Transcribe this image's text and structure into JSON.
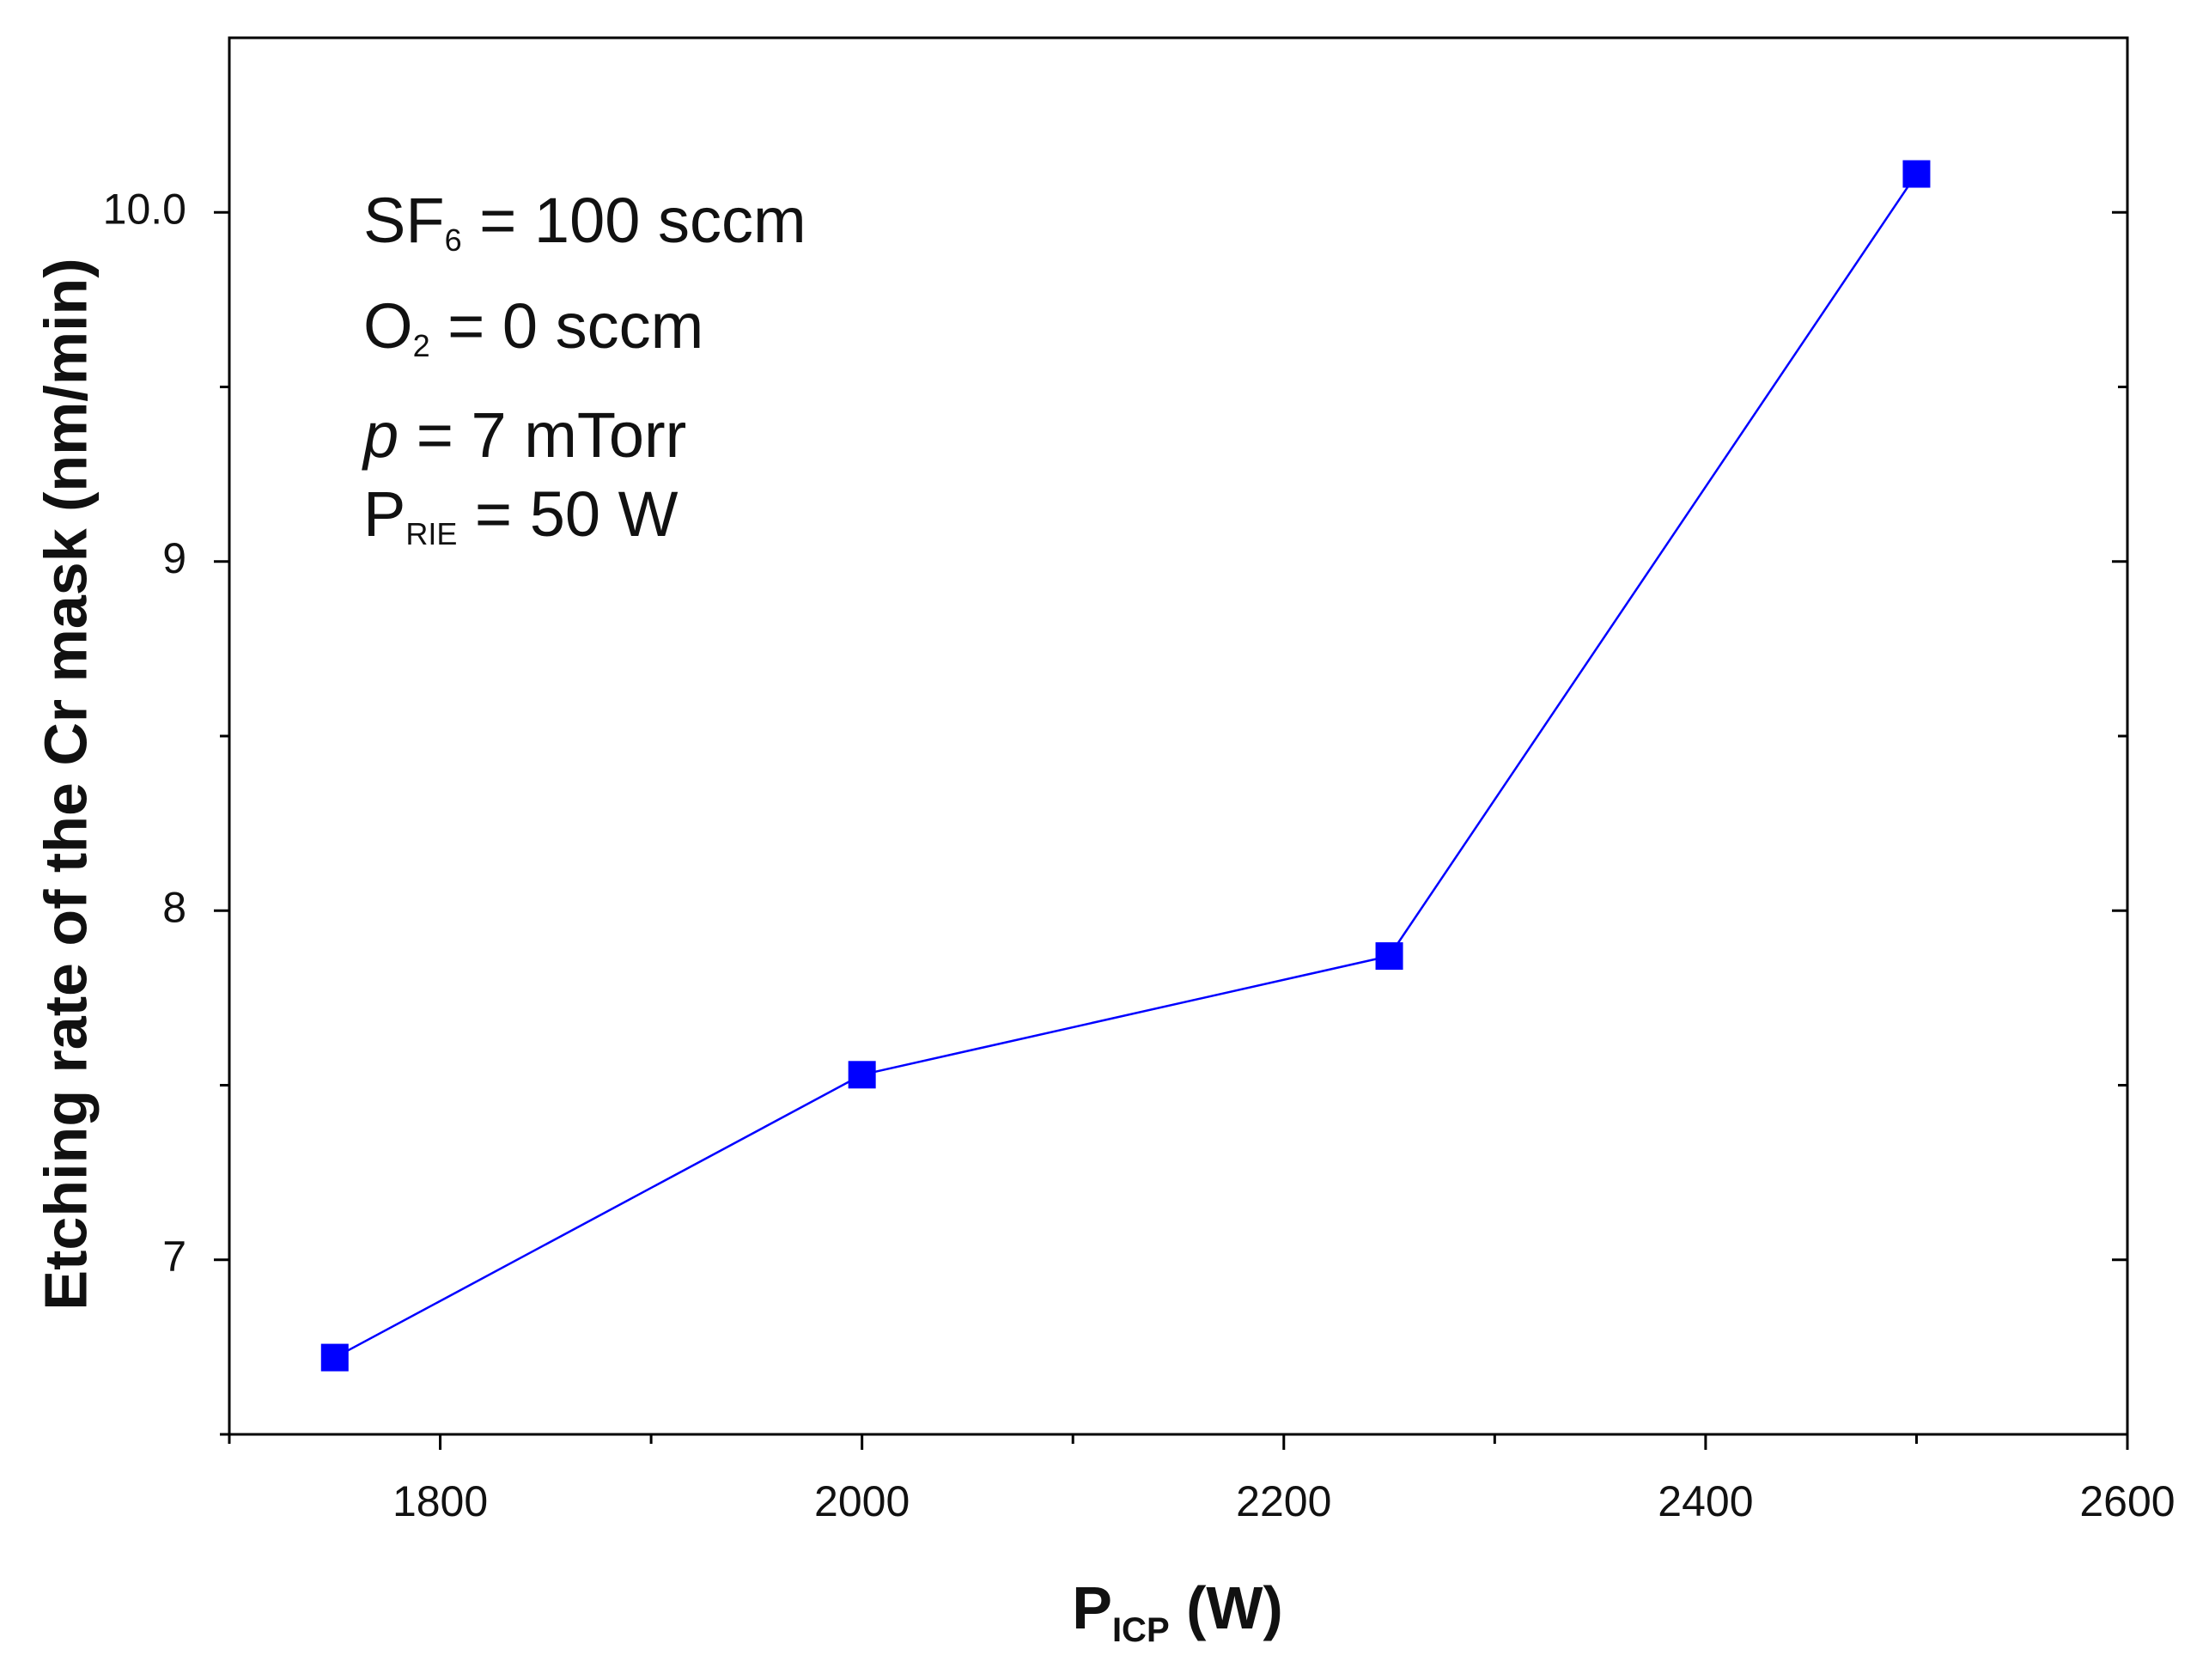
{
  "chart_data": {
    "type": "line",
    "x": [
      1750,
      2000,
      2250,
      2500
    ],
    "values": [
      6.72,
      7.53,
      7.87,
      10.11
    ],
    "color": "#0000ff",
    "xlim": [
      1700,
      2600
    ],
    "ylim": [
      6.5,
      10.5
    ],
    "xticks": [
      1800,
      2000,
      2200,
      2400,
      2600
    ],
    "xminorticks": [
      1700,
      1900,
      2100,
      2300,
      2500
    ],
    "yticks": [
      7,
      8,
      9,
      {
        "value": 10,
        "label": "10.0"
      }
    ],
    "yminorticks": [
      6.5,
      7.5,
      8.5,
      9.5
    ],
    "y_label": "Etching rate of the Cr mask (nm/min)",
    "x_label": [
      {
        "text": "P"
      },
      {
        "text": "ICP",
        "sub": true
      },
      {
        "text": " (W)"
      }
    ],
    "annotations": [
      [
        {
          "text": "SF"
        },
        {
          "text": "6",
          "sub": true
        },
        {
          "text": " = 100 sccm"
        }
      ],
      [
        {
          "text": "O"
        },
        {
          "text": "2",
          "sub": true
        },
        {
          "text": " = 0 sccm"
        }
      ],
      [
        {
          "text": "p",
          "italic": true
        },
        {
          "text": " = 7 mTorr"
        }
      ],
      [
        {
          "text": "P"
        },
        {
          "text": "RIE",
          "sub": true
        },
        {
          "text": " = 50 W"
        }
      ]
    ]
  }
}
